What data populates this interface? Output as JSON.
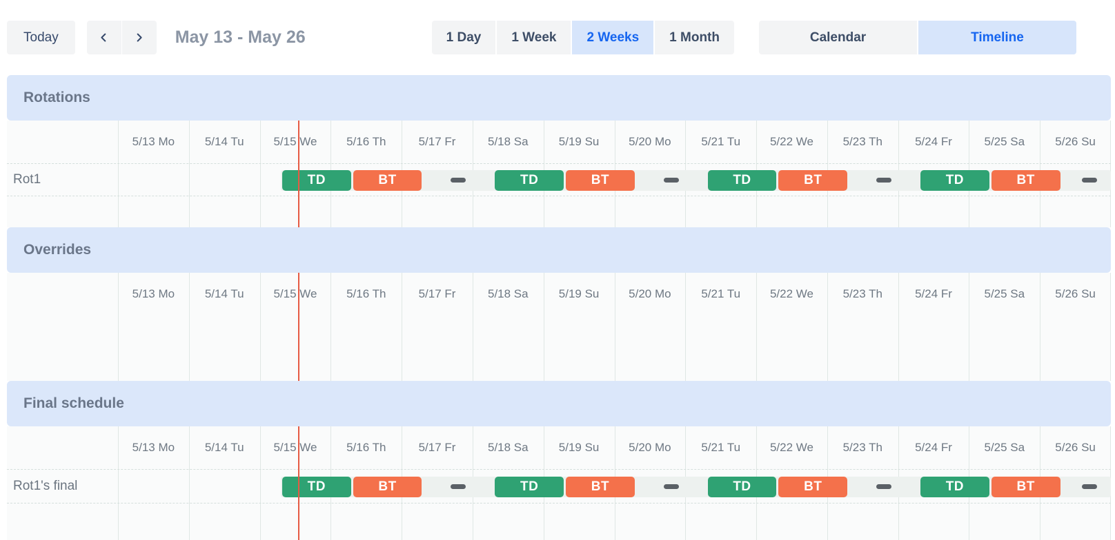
{
  "toolbar": {
    "today_label": "Today",
    "date_range": "May 13 - May 26",
    "zoom_options": [
      {
        "label": "1 Day",
        "active": false
      },
      {
        "label": "1 Week",
        "active": false
      },
      {
        "label": "2 Weeks",
        "active": true
      },
      {
        "label": "1 Month",
        "active": false
      }
    ],
    "view_options": [
      {
        "label": "Calendar",
        "active": false
      },
      {
        "label": "Timeline",
        "active": true
      }
    ]
  },
  "timeline": {
    "days": [
      "5/13 Mo",
      "5/14 Tu",
      "5/15 We",
      "5/16 Th",
      "5/17 Fr",
      "5/18 Sa",
      "5/19 Su",
      "5/20 Mo",
      "5/21 Tu",
      "5/22 We",
      "5/23 Th",
      "5/24 Fr",
      "5/25 Sa",
      "5/26 Su"
    ],
    "now_marker": {
      "day": "5/15 We",
      "day_index": 2,
      "fraction": 0.54
    },
    "shift_types": [
      {
        "code": "TD",
        "color": "#2fa273"
      },
      {
        "code": "BT",
        "color": "#f4714b"
      }
    ],
    "sections": [
      {
        "title": "Rotations",
        "rows": [
          {
            "label": "Rot1",
            "kind": "schedule",
            "coverage_start_day": 2.3,
            "bars": [
              {
                "code": "TD",
                "start_day": 2.3,
                "end_day": 3.3
              },
              {
                "code": "BT",
                "start_day": 3.3,
                "end_day": 4.3
              },
              {
                "code": "TD",
                "start_day": 5.3,
                "end_day": 6.3
              },
              {
                "code": "BT",
                "start_day": 6.3,
                "end_day": 7.3
              },
              {
                "code": "TD",
                "start_day": 8.3,
                "end_day": 9.3
              },
              {
                "code": "BT",
                "start_day": 9.3,
                "end_day": 10.3
              },
              {
                "code": "TD",
                "start_day": 11.3,
                "end_day": 12.3
              },
              {
                "code": "BT",
                "start_day": 12.3,
                "end_day": 13.3
              }
            ],
            "gap_markers_day": [
              4.8,
              7.8,
              10.8,
              13.7
            ]
          },
          {
            "label": "",
            "kind": "empty"
          }
        ]
      },
      {
        "title": "Overrides",
        "rows": [
          {
            "label": "",
            "kind": "spacer"
          }
        ]
      },
      {
        "title": "Final schedule",
        "rows": [
          {
            "label": "Rot1's final",
            "kind": "schedule",
            "coverage_start_day": 2.3,
            "bars": [
              {
                "code": "TD",
                "start_day": 2.3,
                "end_day": 3.3
              },
              {
                "code": "BT",
                "start_day": 3.3,
                "end_day": 4.3
              },
              {
                "code": "TD",
                "start_day": 5.3,
                "end_day": 6.3
              },
              {
                "code": "BT",
                "start_day": 6.3,
                "end_day": 7.3
              },
              {
                "code": "TD",
                "start_day": 8.3,
                "end_day": 9.3
              },
              {
                "code": "BT",
                "start_day": 9.3,
                "end_day": 10.3
              },
              {
                "code": "TD",
                "start_day": 11.3,
                "end_day": 12.3
              },
              {
                "code": "BT",
                "start_day": 12.3,
                "end_day": 13.3
              }
            ],
            "gap_markers_day": [
              4.8,
              7.8,
              10.8,
              13.7
            ]
          },
          {
            "label": "",
            "kind": "empty"
          }
        ]
      }
    ]
  },
  "colors": {
    "accent_blue_text": "#1565f0",
    "accent_blue_bg": "#d7e5fb",
    "section_band_bg": "#dbe7fa",
    "shift_green": "#2fa273",
    "shift_orange": "#f4714b",
    "gap_dash": "#5a6066",
    "now_line_red": "#e65a43",
    "coverage_strip": "#edf1ef"
  }
}
